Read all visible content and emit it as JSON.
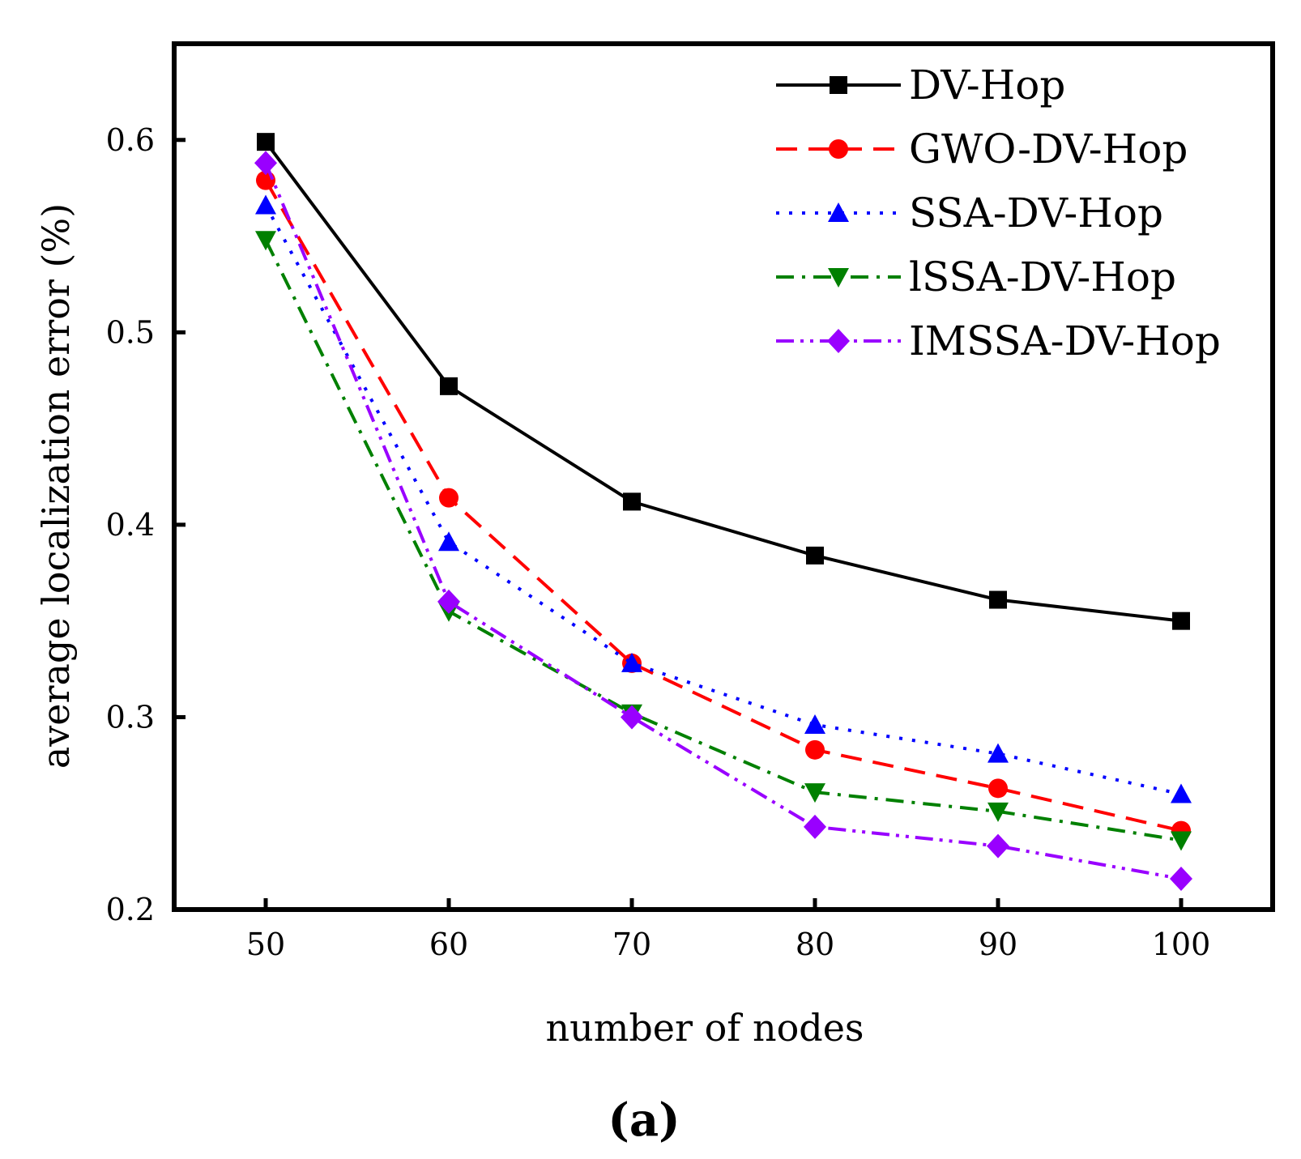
{
  "chart_data": {
    "type": "line",
    "title": "",
    "xlabel": "number of nodes",
    "ylabel": "average localization error (%)",
    "panel_label": "(a)",
    "x": [
      50,
      60,
      70,
      80,
      90,
      100
    ],
    "xlim": [
      45,
      105
    ],
    "ylim": [
      0.2,
      0.65
    ],
    "xticks": [
      50,
      60,
      70,
      80,
      90,
      100
    ],
    "yticks": [
      0.2,
      0.3,
      0.4,
      0.5,
      0.6
    ],
    "ytick_labels": [
      "0.2",
      "0.3",
      "0.4",
      "0.5",
      "0.6"
    ],
    "grid": false,
    "legend_position": "top-right",
    "series": [
      {
        "name": "DV-Hop",
        "color": "#000000",
        "marker": "square",
        "line": "solid",
        "values": [
          0.599,
          0.472,
          0.412,
          0.384,
          0.361,
          0.35
        ]
      },
      {
        "name": "GWO-DV-Hop",
        "color": "#ff0000",
        "marker": "circle",
        "line": "dash",
        "values": [
          0.579,
          0.414,
          0.328,
          0.283,
          0.263,
          0.241
        ]
      },
      {
        "name": "SSA-DV-Hop",
        "color": "#0000ff",
        "marker": "triangle-up",
        "line": "dot",
        "values": [
          0.566,
          0.391,
          0.328,
          0.296,
          0.281,
          0.26
        ]
      },
      {
        "name": "lSSA-DV-Hop",
        "color": "#008000",
        "marker": "triangle-down",
        "line": "dashdot",
        "values": [
          0.548,
          0.355,
          0.302,
          0.261,
          0.251,
          0.236
        ]
      },
      {
        "name": "IMSSA-DV-Hop",
        "color": "#9900ff",
        "marker": "diamond",
        "line": "dashdotdot",
        "values": [
          0.588,
          0.36,
          0.3,
          0.243,
          0.233,
          0.216
        ]
      }
    ]
  }
}
